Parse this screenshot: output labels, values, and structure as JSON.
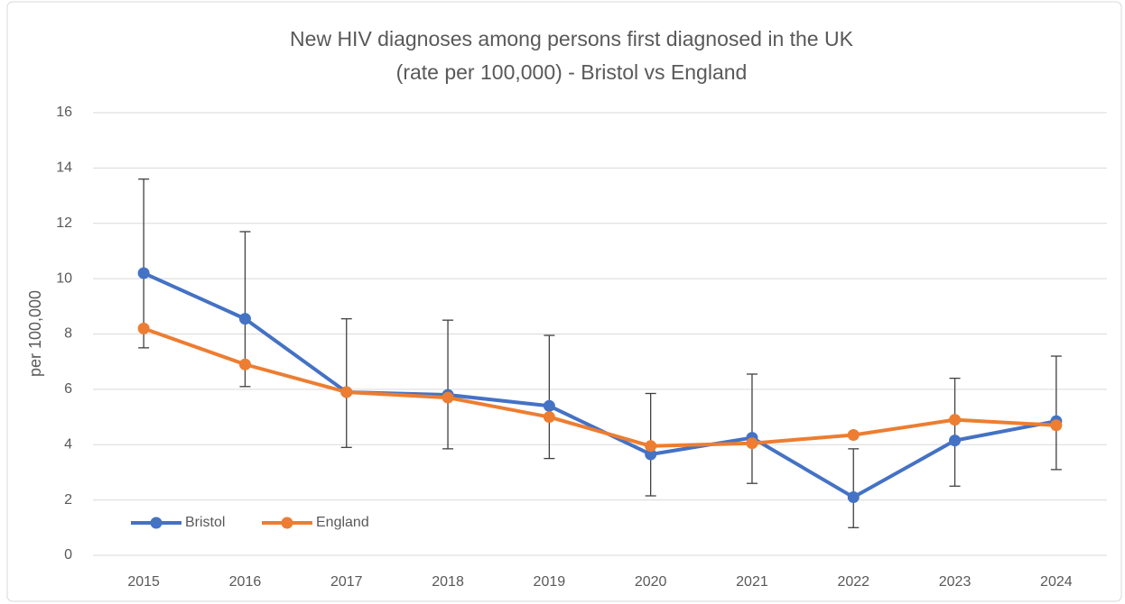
{
  "chart_data": {
    "type": "line",
    "title": [
      "New HIV diagnoses among persons first diagnosed in the UK",
      "(rate per 100,000) - Bristol vs England"
    ],
    "ylabel": "per 100,000",
    "categories": [
      "2015",
      "2016",
      "2017",
      "2018",
      "2019",
      "2020",
      "2021",
      "2022",
      "2023",
      "2024"
    ],
    "series": [
      {
        "name": "Bristol",
        "color": "#4472c4",
        "values": [
          10.2,
          8.55,
          5.9,
          5.8,
          5.4,
          3.65,
          4.25,
          2.1,
          4.15,
          4.85
        ],
        "lower": [
          7.5,
          6.1,
          3.9,
          3.85,
          3.5,
          2.15,
          2.6,
          1.0,
          2.5,
          3.1
        ],
        "upper": [
          13.6,
          11.7,
          8.55,
          8.5,
          7.95,
          5.85,
          6.55,
          3.85,
          6.4,
          7.2
        ]
      },
      {
        "name": "England",
        "color": "#ed7d31",
        "values": [
          8.2,
          6.9,
          5.9,
          5.7,
          5.0,
          3.95,
          4.05,
          4.35,
          4.9,
          4.7
        ]
      }
    ],
    "ylim": [
      0,
      16
    ],
    "yticks": [
      0,
      2,
      4,
      6,
      8,
      10,
      12,
      14,
      16
    ],
    "grid": true,
    "legend": "lower left"
  }
}
